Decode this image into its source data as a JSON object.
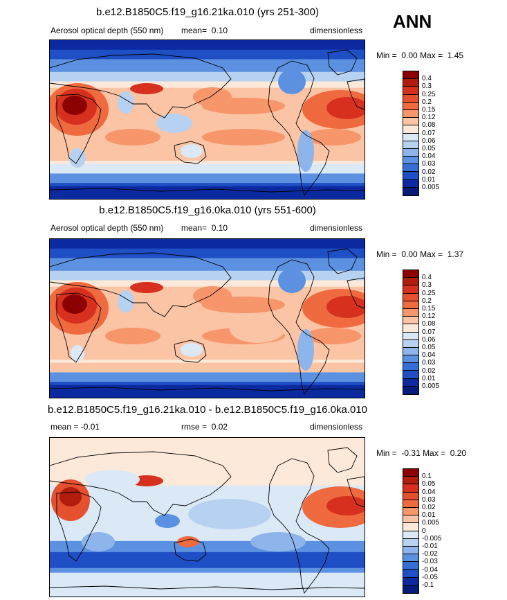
{
  "season": "ANN",
  "panels": [
    {
      "title": "b.e12.B1850C5.f19_g16.21ka.010 (yrs 251-300)",
      "left_label": "Aerosol optical depth (550 nm)",
      "mean_label": "mean=",
      "mean_value": "0.10",
      "units": "dimensionless",
      "min_label": "Min =",
      "min_value": "0.00",
      "max_label": "Max =",
      "max_value": "1.45",
      "levels": [
        "0.4",
        "0.3",
        "0.25",
        "0.2",
        "0.15",
        "0.12",
        "0.08",
        "0.07",
        "0.06",
        "0.05",
        "0.04",
        "0.03",
        "0.02",
        "0.01",
        "0.005"
      ],
      "colors": [
        "#8b0000",
        "#b01d0c",
        "#d7301f",
        "#e5512e",
        "#ef6a3f",
        "#f7956b",
        "#fbc4a4",
        "#fde9da",
        "#dbe9f7",
        "#b7d1f1",
        "#8db5eb",
        "#5b91e0",
        "#356fd6",
        "#1f4fc4",
        "#0b2aa0",
        "#061a78"
      ],
      "mean_map": 0.1
    },
    {
      "title": "b.e12.B1850C5.f19_g16.0ka.010 (yrs 551-600)",
      "left_label": "Aerosol optical depth (550 nm)",
      "mean_label": "mean=",
      "mean_value": "0.10",
      "units": "dimensionless",
      "min_label": "Min =",
      "min_value": "0.00",
      "max_label": "Max =",
      "max_value": "1.37",
      "levels": [
        "0.4",
        "0.3",
        "0.25",
        "0.2",
        "0.15",
        "0.12",
        "0.08",
        "0.07",
        "0.06",
        "0.05",
        "0.04",
        "0.03",
        "0.02",
        "0.01",
        "0.005"
      ],
      "colors": [
        "#8b0000",
        "#b01d0c",
        "#d7301f",
        "#e5512e",
        "#ef6a3f",
        "#f7956b",
        "#fbc4a4",
        "#fde9da",
        "#dbe9f7",
        "#b7d1f1",
        "#8db5eb",
        "#5b91e0",
        "#356fd6",
        "#1f4fc4",
        "#0b2aa0",
        "#061a78"
      ],
      "mean_map": 0.1
    },
    {
      "title": "b.e12.B1850C5.f19_g16.21ka.010 - b.e12.B1850C5.f19_g16.0ka.010",
      "left_label": "mean =  -0.01",
      "mean_label": "rmse =",
      "mean_value": "0.02",
      "units": "dimensionless",
      "min_label": "Min =",
      "min_value": "-0.31",
      "max_label": "Max =",
      "max_value": "0.20",
      "levels": [
        "0.1",
        "0.05",
        "0.04",
        "0.03",
        "0.02",
        "0.01",
        "0.005",
        "0",
        "-0.005",
        "-0.01",
        "-0.02",
        "-0.03",
        "-0.04",
        "-0.05",
        "-0.1"
      ],
      "colors": [
        "#8b0000",
        "#b01d0c",
        "#d7301f",
        "#e5512e",
        "#ef6a3f",
        "#f7956b",
        "#fbc4a4",
        "#fde9da",
        "#dbe9f7",
        "#b7d1f1",
        "#8db5eb",
        "#5b91e0",
        "#356fd6",
        "#1f4fc4",
        "#0b2aa0",
        "#061a78"
      ],
      "mean_map": -0.01
    }
  ]
}
